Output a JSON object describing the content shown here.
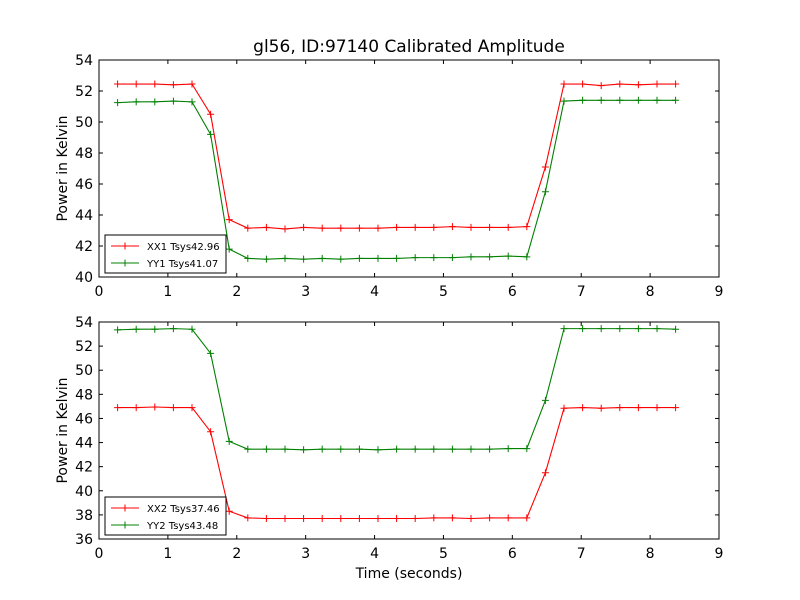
{
  "chart_data": {
    "title": "gl56, ID:97140 Calibrated Amplitude",
    "xlabel": "Time (seconds)",
    "type": "line",
    "panels": [
      {
        "type": "line",
        "ylabel": "Power in Kelvin",
        "xlim": [
          0,
          9
        ],
        "ylim": [
          40,
          54
        ],
        "xticks": [
          "0",
          "1",
          "2",
          "3",
          "4",
          "5",
          "6",
          "7",
          "8",
          "9"
        ],
        "yticks": [
          "40",
          "42",
          "44",
          "46",
          "48",
          "50",
          "52",
          "54"
        ],
        "legend_position": "lower-left",
        "grid": false,
        "x": [
          0.27,
          0.54,
          0.81,
          1.08,
          1.35,
          1.62,
          1.89,
          2.16,
          2.43,
          2.7,
          2.97,
          3.24,
          3.51,
          3.78,
          4.05,
          4.32,
          4.59,
          4.86,
          5.13,
          5.4,
          5.67,
          5.94,
          6.21,
          6.48,
          6.75,
          7.02,
          7.29,
          7.56,
          7.83,
          8.1,
          8.37
        ],
        "series": [
          {
            "name": "XX1 Tsys42.96",
            "color": "#ff0000",
            "values": [
              52.45,
              52.45,
              52.45,
              52.4,
              52.45,
              50.5,
              43.7,
              43.15,
              43.2,
              43.1,
              43.2,
              43.15,
              43.15,
              43.15,
              43.15,
              43.2,
              43.2,
              43.2,
              43.25,
              43.2,
              43.2,
              43.2,
              43.25,
              47.1,
              52.45,
              52.45,
              52.35,
              52.45,
              52.4,
              52.45,
              52.45
            ]
          },
          {
            "name": "YY1 Tsys41.07",
            "color": "#008000",
            "values": [
              51.25,
              51.3,
              51.3,
              51.35,
              51.3,
              49.2,
              41.8,
              41.2,
              41.15,
              41.2,
              41.15,
              41.2,
              41.15,
              41.2,
              41.2,
              41.2,
              41.25,
              41.25,
              41.25,
              41.3,
              41.3,
              41.35,
              41.3,
              45.5,
              51.35,
              51.4,
              51.4,
              51.4,
              51.4,
              51.4,
              51.4
            ]
          }
        ]
      },
      {
        "type": "line",
        "ylabel": "Power in Kelvin",
        "xlim": [
          0,
          9
        ],
        "ylim": [
          36,
          54
        ],
        "xticks": [
          "0",
          "1",
          "2",
          "3",
          "4",
          "5",
          "6",
          "7",
          "8",
          "9"
        ],
        "yticks": [
          "36",
          "38",
          "40",
          "42",
          "44",
          "46",
          "48",
          "50",
          "52",
          "54"
        ],
        "legend_position": "lower-left",
        "grid": false,
        "x": [
          0.27,
          0.54,
          0.81,
          1.08,
          1.35,
          1.62,
          1.89,
          2.16,
          2.43,
          2.7,
          2.97,
          3.24,
          3.51,
          3.78,
          4.05,
          4.32,
          4.59,
          4.86,
          5.13,
          5.4,
          5.67,
          5.94,
          6.21,
          6.48,
          6.75,
          7.02,
          7.29,
          7.56,
          7.83,
          8.1,
          8.37
        ],
        "series": [
          {
            "name": "XX2 Tsys37.46",
            "color": "#ff0000",
            "values": [
              46.9,
              46.9,
              46.95,
              46.9,
              46.9,
              44.9,
              38.3,
              37.75,
              37.7,
              37.7,
              37.7,
              37.7,
              37.7,
              37.7,
              37.7,
              37.7,
              37.7,
              37.75,
              37.75,
              37.7,
              37.75,
              37.75,
              37.75,
              41.5,
              46.85,
              46.9,
              46.85,
              46.9,
              46.9,
              46.9,
              46.9
            ]
          },
          {
            "name": "YY2 Tsys43.48",
            "color": "#008000",
            "values": [
              53.35,
              53.4,
              53.4,
              53.45,
              53.4,
              51.4,
              44.1,
              43.45,
              43.45,
              43.45,
              43.4,
              43.45,
              43.45,
              43.45,
              43.4,
              43.45,
              43.45,
              43.45,
              43.45,
              43.45,
              43.45,
              43.5,
              43.5,
              47.5,
              53.45,
              53.45,
              53.45,
              53.45,
              53.45,
              53.45,
              53.4
            ]
          }
        ]
      }
    ]
  }
}
